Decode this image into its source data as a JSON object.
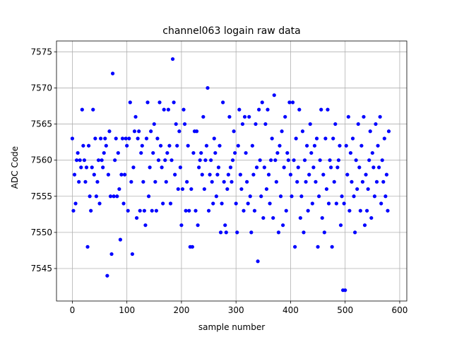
{
  "chart_data": {
    "type": "scatter",
    "title": "channel063 logain raw data",
    "xlabel": "sample number",
    "ylabel": "ADC Code",
    "grid": true,
    "color": "#0000ff",
    "xlim": [
      -29,
      613
    ],
    "ylim": [
      7540.5,
      7576.5
    ],
    "xticks": [
      0,
      100,
      200,
      300,
      400,
      500,
      600
    ],
    "yticks": [
      7545,
      7550,
      7555,
      7560,
      7565,
      7570,
      7575
    ],
    "x": [
      0,
      2,
      4,
      6,
      8,
      10,
      12,
      14,
      16,
      18,
      20,
      22,
      24,
      26,
      28,
      30,
      32,
      34,
      36,
      38,
      40,
      42,
      44,
      46,
      48,
      50,
      52,
      54,
      56,
      58,
      60,
      62,
      64,
      66,
      68,
      70,
      72,
      74,
      76,
      78,
      80,
      82,
      84,
      86,
      88,
      90,
      92,
      94,
      96,
      98,
      100,
      102,
      104,
      106,
      108,
      110,
      112,
      114,
      116,
      118,
      120,
      122,
      124,
      126,
      128,
      130,
      132,
      134,
      136,
      138,
      140,
      142,
      144,
      146,
      148,
      150,
      152,
      154,
      156,
      158,
      160,
      162,
      164,
      166,
      168,
      170,
      172,
      174,
      176,
      178,
      180,
      182,
      184,
      186,
      188,
      190,
      192,
      194,
      196,
      198,
      200,
      202,
      204,
      206,
      208,
      210,
      212,
      214,
      216,
      218,
      220,
      222,
      224,
      226,
      228,
      230,
      232,
      234,
      236,
      238,
      240,
      242,
      244,
      246,
      248,
      250,
      252,
      254,
      256,
      258,
      260,
      262,
      264,
      266,
      268,
      270,
      272,
      274,
      276,
      278,
      280,
      282,
      284,
      286,
      288,
      290,
      292,
      294,
      296,
      298,
      300,
      302,
      304,
      306,
      308,
      310,
      312,
      314,
      316,
      318,
      320,
      322,
      324,
      326,
      328,
      330,
      332,
      334,
      336,
      338,
      340,
      342,
      344,
      346,
      348,
      350,
      352,
      354,
      356,
      358,
      360,
      362,
      364,
      366,
      368,
      370,
      372,
      374,
      376,
      378,
      380,
      382,
      384,
      386,
      388,
      390,
      392,
      394,
      396,
      398,
      400,
      402,
      404,
      406,
      408,
      410,
      412,
      414,
      416,
      418,
      420,
      422,
      424,
      426,
      428,
      430,
      432,
      434,
      436,
      438,
      440,
      442,
      444,
      446,
      448,
      450,
      452,
      454,
      456,
      458,
      460,
      462,
      464,
      466,
      468,
      470,
      472,
      474,
      476,
      478,
      480,
      482,
      484,
      486,
      488,
      490,
      492,
      494,
      496,
      498,
      500,
      502,
      504,
      506,
      508,
      510,
      512,
      514,
      516,
      518,
      520,
      522,
      524,
      526,
      528,
      530,
      532,
      534,
      536,
      538,
      540,
      542,
      544,
      546,
      548,
      550,
      552,
      554,
      556,
      558,
      560,
      562,
      564,
      566,
      568,
      570,
      572,
      574,
      576,
      578,
      580
    ],
    "values": [
      7563,
      7553,
      7558,
      7554,
      7560,
      7561,
      7557,
      7560,
      7559,
      7567,
      7562,
      7560,
      7557,
      7559,
      7548,
      7562,
      7555,
      7553,
      7559,
      7567,
      7558,
      7563,
      7555,
      7557,
      7560,
      7554,
      7563,
      7560,
      7559,
      7561,
      7563,
      7562,
      7544,
      7558,
      7564,
      7555,
      7547,
      7572,
      7555,
      7560,
      7563,
      7555,
      7561,
      7556,
      7549,
      7558,
      7563,
      7554,
      7558,
      7563,
      7562,
      7553,
      7563,
      7568,
      7557,
      7547,
      7559,
      7564,
      7566,
      7552,
      7563,
      7564,
      7553,
      7561,
      7562,
      7557,
      7553,
      7551,
      7563,
      7568,
      7555,
      7559,
      7564,
      7553,
      7561,
      7565,
      7557,
      7553,
      7563,
      7560,
      7568,
      7562,
      7559,
      7554,
      7567,
      7560,
      7557,
      7561,
      7567,
      7562,
      7554,
      7560,
      7574,
      7568,
      7558,
      7565,
      7562,
      7556,
      7564,
      7559,
      7551,
      7556,
      7567,
      7565,
      7553,
      7557,
      7562,
      7553,
      7548,
      7556,
      7548,
      7561,
      7564,
      7553,
      7564,
      7551,
      7559,
      7560,
      7561,
      7558,
      7566,
      7556,
      7560,
      7562,
      7570,
      7553,
      7558,
      7560,
      7557,
      7554,
      7563,
      7561,
      7555,
      7558,
      7559,
      7562,
      7550,
      7554,
      7568,
      7557,
      7551,
      7550,
      7556,
      7558,
      7566,
      7559,
      7557,
      7560,
      7564,
      7561,
      7554,
      7550,
      7562,
      7567,
      7558,
      7556,
      7565,
      7553,
      7566,
      7561,
      7557,
      7554,
      7566,
      7555,
      7550,
      7562,
      7558,
      7553,
      7565,
      7559,
      7546,
      7567,
      7560,
      7555,
      7568,
      7552,
      7559,
      7565,
      7556,
      7567,
      7558,
      7554,
      7560,
      7563,
      7552,
      7569,
      7560,
      7557,
      7561,
      7550,
      7562,
      7555,
      7564,
      7551,
      7559,
      7566,
      7553,
      7561,
      7560,
      7568,
      7558,
      7555,
      7568,
      7560,
      7548,
      7563,
      7557,
      7559,
      7567,
      7552,
      7555,
      7564,
      7550,
      7560,
      7557,
      7562,
      7553,
      7558,
      7565,
      7561,
      7554,
      7559,
      7562,
      7557,
      7563,
      7548,
      7555,
      7560,
      7567,
      7552,
      7558,
      7550,
      7563,
      7556,
      7567,
      7554,
      7560,
      7559,
      7548,
      7563,
      7557,
      7565,
      7554,
      7559,
      7560,
      7562,
      7551,
      7555,
      7542,
      7554,
      7542,
      7562,
      7558,
      7566,
      7553,
      7561,
      7557,
      7563,
      7555,
      7550,
      7560,
      7556,
      7565,
      7559,
      7553,
      7562,
      7557,
      7566,
      7551,
      7558,
      7553,
      7556,
      7560,
      7564,
      7552,
      7561,
      7559,
      7555,
      7565,
      7557,
      7562,
      7559,
      7566,
      7554,
      7560,
      7557,
      7563,
      7555,
      7558,
      7553,
      7564
    ]
  }
}
